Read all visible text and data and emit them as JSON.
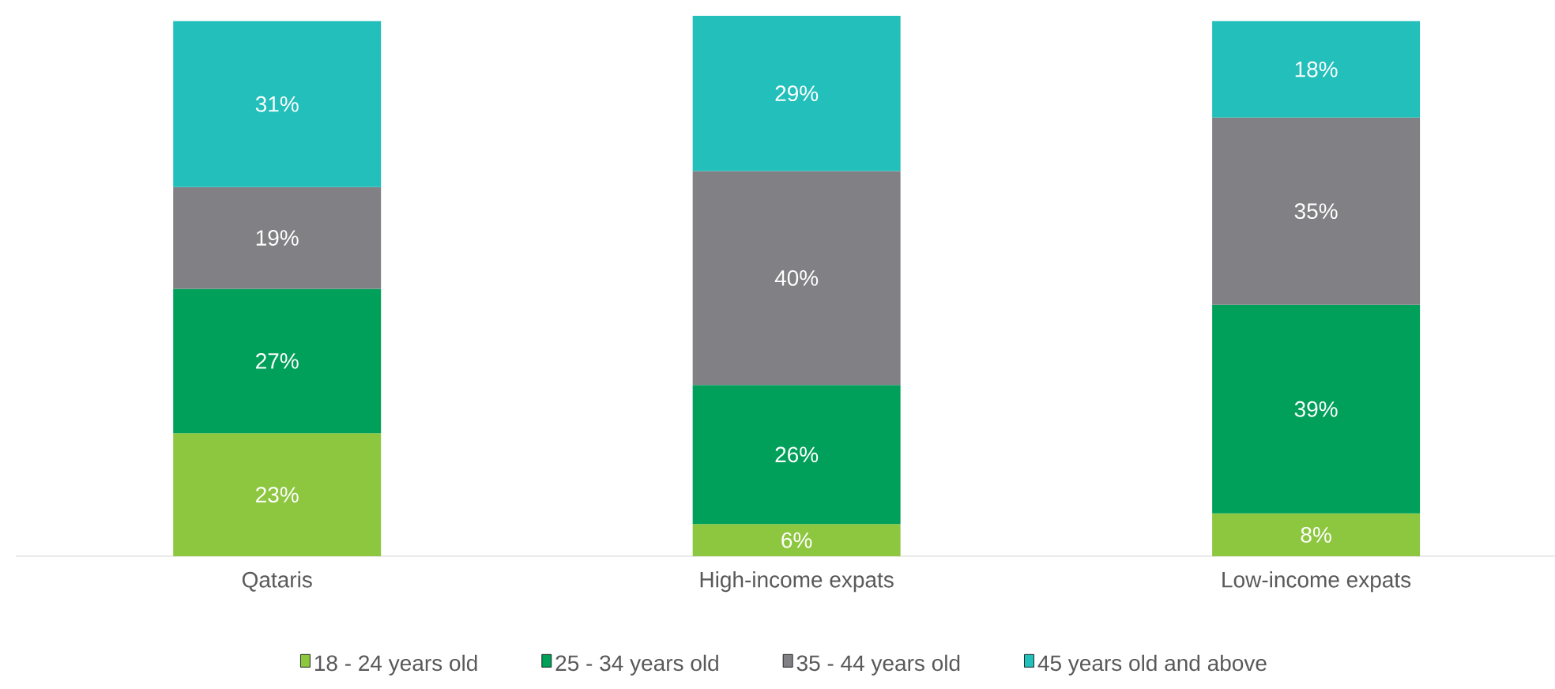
{
  "chart_data": {
    "type": "bar",
    "stacked": true,
    "categories": [
      "Qataris",
      "High-income expats",
      "Low-income expats"
    ],
    "series": [
      {
        "name": "18 - 24 years old",
        "color": "#8dc63f",
        "values": [
          23,
          6,
          8
        ],
        "value_labels": [
          "23%",
          "6%",
          "8%"
        ]
      },
      {
        "name": "25 - 34 years old",
        "color": "#00a05a",
        "values": [
          27,
          26,
          39
        ],
        "value_labels": [
          "27%",
          "26%",
          "39%"
        ]
      },
      {
        "name": "35 - 44 years old",
        "color": "#808085",
        "values": [
          19,
          40,
          35
        ],
        "value_labels": [
          "19%",
          "40%",
          "35%"
        ]
      },
      {
        "name": "45 years old and above",
        "color": "#22bfbb",
        "values": [
          31,
          29,
          18
        ],
        "value_labels": [
          "31%",
          "29%",
          "18%"
        ]
      }
    ],
    "legend": "bottom"
  }
}
